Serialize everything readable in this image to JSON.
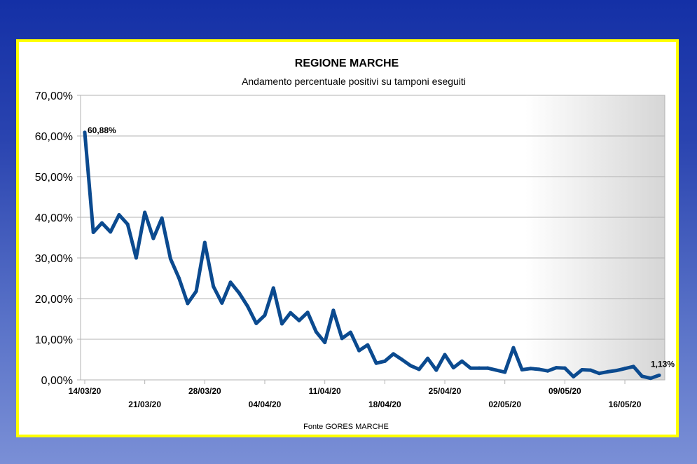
{
  "chart_data": {
    "type": "line",
    "title": "REGIONE MARCHE",
    "subtitle": "Andamento percentuale positivi su tamponi eseguiti",
    "source": "Fonte GORES MARCHE",
    "xlabel": "",
    "ylabel": "",
    "ylim": [
      0,
      70
    ],
    "y_ticks": [
      "0,00%",
      "10,00%",
      "20,00%",
      "30,00%",
      "40,00%",
      "50,00%",
      "60,00%",
      "70,00%"
    ],
    "x_tick_labels": [
      "14/03/20",
      "21/03/20",
      "28/03/20",
      "04/04/20",
      "11/04/20",
      "18/04/20",
      "25/04/20",
      "02/05/20",
      "09/05/20",
      "16/05/20"
    ],
    "grid": true,
    "legend": "none",
    "line_color": "#0b4a8f",
    "x_start": "2020-03-14",
    "x_end": "2020-05-20",
    "values": [
      60.88,
      36.3,
      38.6,
      36.4,
      40.6,
      38.3,
      30.0,
      41.2,
      34.8,
      39.8,
      29.8,
      25.0,
      18.8,
      21.8,
      33.8,
      23.0,
      18.9,
      24.0,
      21.4,
      18.1,
      13.9,
      15.9,
      22.6,
      13.8,
      16.5,
      14.6,
      16.6,
      11.8,
      9.2,
      17.1,
      10.2,
      11.7,
      7.2,
      8.6,
      4.1,
      4.6,
      6.4,
      5.0,
      3.5,
      2.6,
      5.3,
      2.4,
      6.2,
      3.0,
      4.6,
      2.9,
      2.9,
      2.9,
      2.4,
      1.9,
      7.9,
      2.5,
      2.8,
      2.6,
      2.2,
      3.0,
      2.9,
      0.8,
      2.5,
      2.4,
      1.6,
      2.0,
      2.3,
      2.8,
      3.3,
      0.9,
      0.4,
      1.13
    ],
    "data_labels": [
      {
        "index": 0,
        "text": "60,88%"
      },
      {
        "index": 67,
        "text": "1,13%"
      }
    ]
  }
}
